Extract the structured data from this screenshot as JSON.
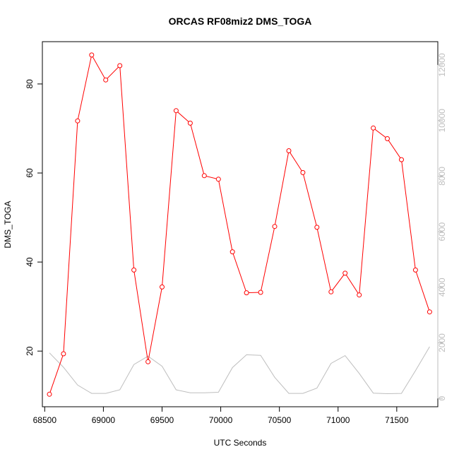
{
  "chart_data": {
    "type": "line",
    "title": "ORCAS RF08miz2 DMS_TOGA",
    "xlabel": "UTC Seconds",
    "ylabel": "DMS_TOGA",
    "xlim": [
      68480,
      71850
    ],
    "ylim": [
      7.5,
      89.5
    ],
    "y2lim": [
      -300,
      12840
    ],
    "xticks": [
      68500,
      69000,
      69500,
      70000,
      70500,
      71000,
      71500
    ],
    "yticks": [
      20,
      40,
      60,
      80
    ],
    "y2ticks": [
      0,
      2000,
      4000,
      6000,
      8000,
      10000,
      12000
    ],
    "grid": false,
    "colors": {
      "primary": "#ff0000",
      "secondary": "#bebebe",
      "axis": "#000000"
    },
    "series": [
      {
        "axis": "left",
        "marker": "open-circle",
        "x": [
          68540,
          68660,
          68780,
          68900,
          69020,
          69140,
          69260,
          69380,
          69500,
          69620,
          69740,
          69860,
          69980,
          70100,
          70220,
          70340,
          70460,
          70580,
          70700,
          70820,
          70940,
          71060,
          71180,
          71300,
          71420,
          71540,
          71660,
          71780
        ],
        "values": [
          10.3,
          19.4,
          71.7,
          86.5,
          80.9,
          84.1,
          38.2,
          17.6,
          34.4,
          74.0,
          71.2,
          59.4,
          58.6,
          42.3,
          33.1,
          33.2,
          48.0,
          65.0,
          60.1,
          47.8,
          33.3,
          37.5,
          32.6,
          70.1,
          67.7,
          63.0,
          38.2,
          28.8
        ]
      },
      {
        "axis": "right",
        "marker": "none",
        "x": [
          68540,
          68660,
          68780,
          68900,
          69020,
          69140,
          69260,
          69380,
          69500,
          69620,
          69740,
          69860,
          69980,
          70100,
          70220,
          70340,
          70460,
          70580,
          70700,
          70820,
          70940,
          71060,
          71180,
          71300,
          71420,
          71540,
          71660,
          71780
        ],
        "values": [
          1640,
          1120,
          480,
          180,
          180,
          310,
          1220,
          1520,
          1160,
          310,
          200,
          200,
          220,
          1110,
          1570,
          1550,
          760,
          180,
          180,
          370,
          1260,
          1540,
          900,
          190,
          170,
          180,
          1000,
          1860
        ]
      }
    ]
  }
}
